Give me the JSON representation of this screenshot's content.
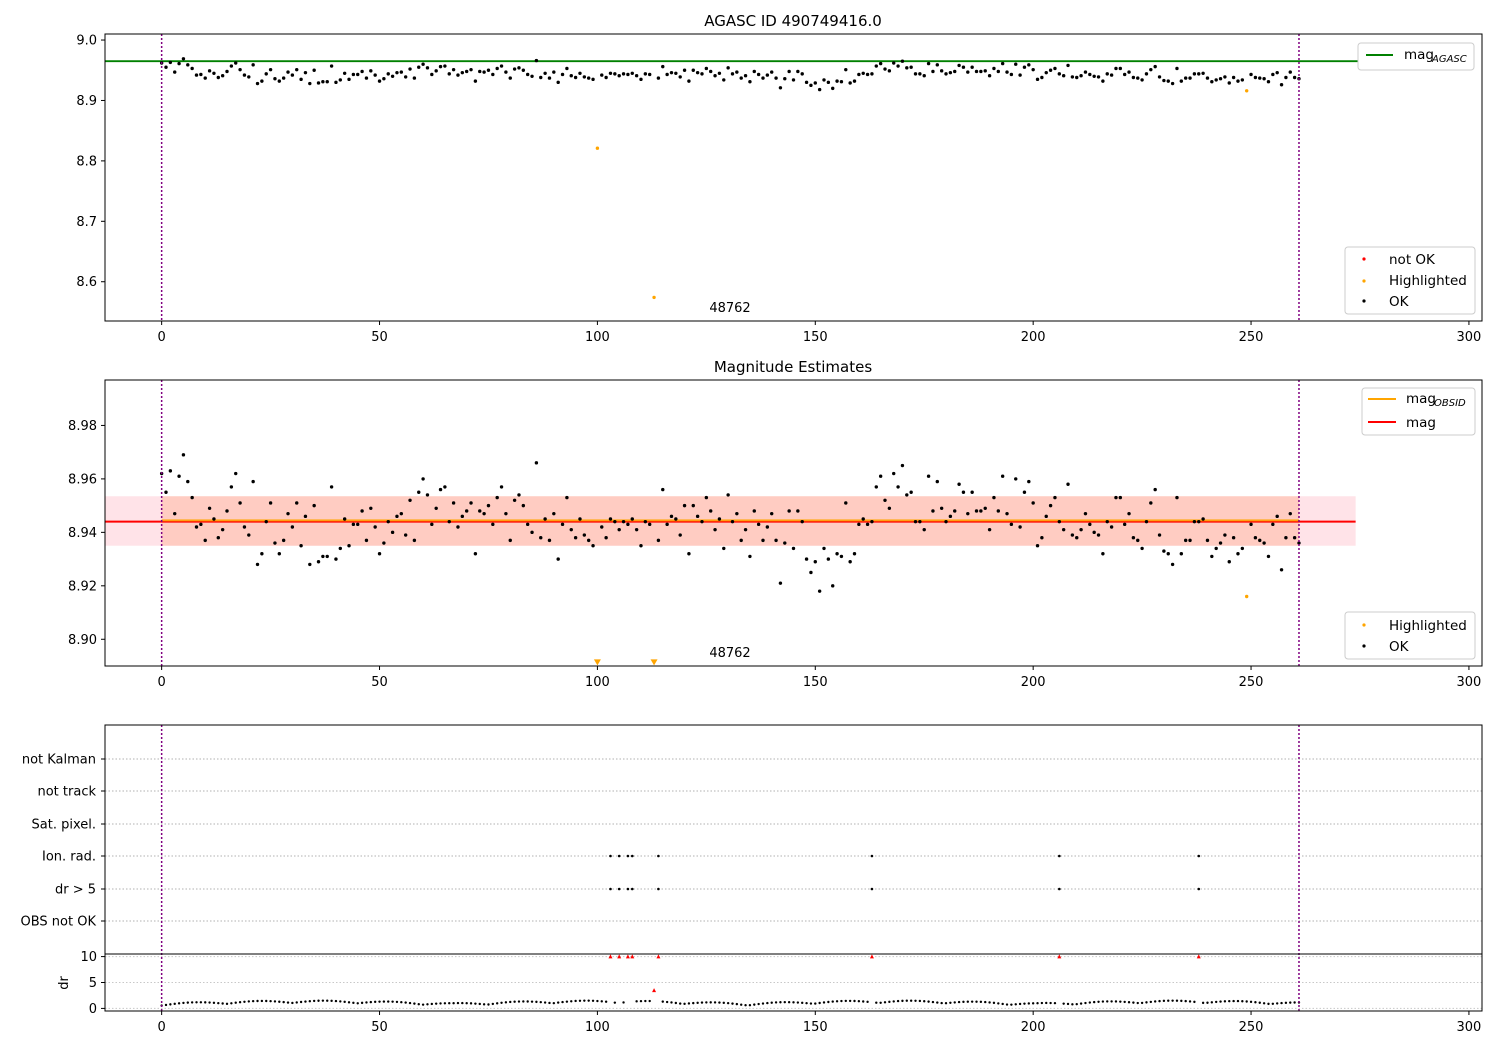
{
  "chart_data": [
    {
      "type": "scatter",
      "title": "AGASC ID 490749416.0",
      "xlim": [
        -13,
        303
      ],
      "ylim": [
        8.535,
        9.01
      ],
      "xticks": [
        0,
        50,
        100,
        150,
        200,
        250,
        300
      ],
      "yticks": [
        8.6,
        8.7,
        8.8,
        8.9,
        9.0
      ],
      "ytick_labels": [
        "8.6",
        "8.7",
        "8.8",
        "8.9",
        "9.0"
      ],
      "grid": false,
      "vlines": [
        0,
        261
      ],
      "hlines": [
        {
          "y": 8.965,
          "color": "#008000",
          "name": "mag_AGASC"
        }
      ],
      "legend_upper": {
        "position": "upper right",
        "entries": [
          {
            "label": "mag",
            "sub": "AGASC",
            "color": "#008000",
            "style": "line"
          }
        ]
      },
      "legend_lower": {
        "position": "lower right",
        "entries": [
          {
            "label": "not OK",
            "color": "#ff0000",
            "style": "dot"
          },
          {
            "label": "Highlighted",
            "color": "#ffa500",
            "style": "dot"
          },
          {
            "label": "OK",
            "color": "#000000",
            "style": "dot"
          }
        ]
      },
      "annotations": [
        {
          "text": "48762",
          "x": 125,
          "y": 8.55
        }
      ],
      "highlighted": [
        {
          "x": 100,
          "y": 8.821
        },
        {
          "x": 113,
          "y": 8.574
        },
        {
          "x": 249,
          "y": 8.916
        }
      ],
      "ok": [
        [
          0,
          8.962
        ],
        [
          1,
          8.955
        ],
        [
          2,
          8.963
        ],
        [
          3,
          8.947
        ],
        [
          4,
          8.961
        ],
        [
          5,
          8.969
        ],
        [
          6,
          8.959
        ],
        [
          7,
          8.953
        ],
        [
          8,
          8.942
        ],
        [
          9,
          8.943
        ],
        [
          10,
          8.937
        ],
        [
          11,
          8.949
        ],
        [
          12,
          8.945
        ],
        [
          13,
          8.938
        ],
        [
          14,
          8.941
        ],
        [
          15,
          8.948
        ],
        [
          16,
          8.957
        ],
        [
          17,
          8.962
        ],
        [
          18,
          8.951
        ],
        [
          19,
          8.942
        ],
        [
          20,
          8.939
        ],
        [
          21,
          8.959
        ],
        [
          22,
          8.928
        ],
        [
          23,
          8.932
        ],
        [
          24,
          8.944
        ],
        [
          25,
          8.951
        ],
        [
          26,
          8.936
        ],
        [
          27,
          8.932
        ],
        [
          28,
          8.937
        ],
        [
          29,
          8.947
        ],
        [
          30,
          8.942
        ],
        [
          31,
          8.951
        ],
        [
          32,
          8.935
        ],
        [
          33,
          8.946
        ],
        [
          34,
          8.928
        ],
        [
          35,
          8.95
        ],
        [
          36,
          8.929
        ],
        [
          37,
          8.931
        ],
        [
          38,
          8.931
        ],
        [
          39,
          8.957
        ],
        [
          40,
          8.93
        ],
        [
          41,
          8.934
        ],
        [
          42,
          8.945
        ],
        [
          43,
          8.935
        ],
        [
          44,
          8.943
        ],
        [
          45,
          8.943
        ],
        [
          46,
          8.948
        ],
        [
          47,
          8.937
        ],
        [
          48,
          8.949
        ],
        [
          49,
          8.942
        ],
        [
          50,
          8.932
        ],
        [
          51,
          8.936
        ],
        [
          52,
          8.944
        ],
        [
          53,
          8.94
        ],
        [
          54,
          8.946
        ],
        [
          55,
          8.947
        ],
        [
          56,
          8.939
        ],
        [
          57,
          8.952
        ],
        [
          58,
          8.937
        ],
        [
          59,
          8.955
        ],
        [
          60,
          8.96
        ],
        [
          61,
          8.954
        ],
        [
          62,
          8.943
        ],
        [
          63,
          8.949
        ],
        [
          64,
          8.956
        ],
        [
          65,
          8.957
        ],
        [
          66,
          8.944
        ],
        [
          67,
          8.951
        ],
        [
          68,
          8.942
        ],
        [
          69,
          8.946
        ],
        [
          70,
          8.948
        ],
        [
          71,
          8.951
        ],
        [
          72,
          8.932
        ],
        [
          73,
          8.948
        ],
        [
          74,
          8.947
        ],
        [
          75,
          8.95
        ],
        [
          76,
          8.943
        ],
        [
          77,
          8.953
        ],
        [
          78,
          8.957
        ],
        [
          79,
          8.947
        ],
        [
          80,
          8.937
        ],
        [
          81,
          8.952
        ],
        [
          82,
          8.954
        ],
        [
          83,
          8.95
        ],
        [
          84,
          8.943
        ],
        [
          85,
          8.94
        ],
        [
          86,
          8.966
        ],
        [
          87,
          8.938
        ],
        [
          88,
          8.945
        ],
        [
          89,
          8.937
        ],
        [
          90,
          8.947
        ],
        [
          91,
          8.93
        ],
        [
          92,
          8.943
        ],
        [
          93,
          8.953
        ],
        [
          94,
          8.941
        ],
        [
          95,
          8.938
        ],
        [
          96,
          8.945
        ],
        [
          97,
          8.939
        ],
        [
          98,
          8.937
        ],
        [
          99,
          8.935
        ],
        [
          101,
          8.942
        ],
        [
          102,
          8.938
        ],
        [
          103,
          8.945
        ],
        [
          104,
          8.944
        ],
        [
          105,
          8.941
        ],
        [
          106,
          8.944
        ],
        [
          107,
          8.943
        ],
        [
          108,
          8.945
        ],
        [
          109,
          8.941
        ],
        [
          110,
          8.935
        ],
        [
          111,
          8.944
        ],
        [
          112,
          8.943
        ],
        [
          114,
          8.937
        ],
        [
          115,
          8.956
        ],
        [
          116,
          8.943
        ],
        [
          117,
          8.946
        ],
        [
          118,
          8.945
        ],
        [
          119,
          8.939
        ],
        [
          120,
          8.95
        ],
        [
          121,
          8.932
        ],
        [
          122,
          8.95
        ],
        [
          123,
          8.946
        ],
        [
          124,
          8.944
        ],
        [
          125,
          8.953
        ],
        [
          126,
          8.948
        ],
        [
          127,
          8.941
        ],
        [
          128,
          8.945
        ],
        [
          129,
          8.934
        ],
        [
          130,
          8.954
        ],
        [
          131,
          8.944
        ],
        [
          132,
          8.947
        ],
        [
          133,
          8.937
        ],
        [
          134,
          8.941
        ],
        [
          135,
          8.931
        ],
        [
          136,
          8.948
        ],
        [
          137,
          8.943
        ],
        [
          138,
          8.937
        ],
        [
          139,
          8.942
        ],
        [
          140,
          8.947
        ],
        [
          141,
          8.937
        ],
        [
          142,
          8.921
        ],
        [
          143,
          8.936
        ],
        [
          144,
          8.948
        ],
        [
          145,
          8.934
        ],
        [
          146,
          8.948
        ],
        [
          147,
          8.944
        ],
        [
          148,
          8.93
        ],
        [
          149,
          8.925
        ],
        [
          150,
          8.929
        ],
        [
          151,
          8.918
        ],
        [
          152,
          8.934
        ],
        [
          153,
          8.93
        ],
        [
          154,
          8.92
        ],
        [
          155,
          8.932
        ],
        [
          156,
          8.931
        ],
        [
          157,
          8.951
        ],
        [
          158,
          8.929
        ],
        [
          159,
          8.932
        ],
        [
          160,
          8.943
        ],
        [
          161,
          8.945
        ],
        [
          162,
          8.943
        ],
        [
          163,
          8.944
        ],
        [
          164,
          8.957
        ],
        [
          165,
          8.961
        ],
        [
          166,
          8.952
        ],
        [
          167,
          8.949
        ],
        [
          168,
          8.962
        ],
        [
          169,
          8.957
        ],
        [
          170,
          8.965
        ],
        [
          171,
          8.954
        ],
        [
          172,
          8.955
        ],
        [
          173,
          8.944
        ],
        [
          174,
          8.944
        ],
        [
          175,
          8.941
        ],
        [
          176,
          8.961
        ],
        [
          177,
          8.948
        ],
        [
          178,
          8.959
        ],
        [
          179,
          8.949
        ],
        [
          180,
          8.944
        ],
        [
          181,
          8.946
        ],
        [
          182,
          8.948
        ],
        [
          183,
          8.958
        ],
        [
          184,
          8.955
        ],
        [
          185,
          8.947
        ],
        [
          186,
          8.955
        ],
        [
          187,
          8.948
        ],
        [
          188,
          8.948
        ],
        [
          189,
          8.949
        ],
        [
          190,
          8.941
        ],
        [
          191,
          8.953
        ],
        [
          192,
          8.948
        ],
        [
          193,
          8.961
        ],
        [
          194,
          8.947
        ],
        [
          195,
          8.943
        ],
        [
          196,
          8.96
        ],
        [
          197,
          8.942
        ],
        [
          198,
          8.955
        ],
        [
          199,
          8.959
        ],
        [
          200,
          8.951
        ],
        [
          201,
          8.935
        ],
        [
          202,
          8.938
        ],
        [
          203,
          8.946
        ],
        [
          204,
          8.95
        ],
        [
          205,
          8.953
        ],
        [
          206,
          8.944
        ],
        [
          207,
          8.941
        ],
        [
          208,
          8.958
        ],
        [
          209,
          8.939
        ],
        [
          210,
          8.938
        ],
        [
          211,
          8.941
        ],
        [
          212,
          8.947
        ],
        [
          213,
          8.943
        ],
        [
          214,
          8.94
        ],
        [
          215,
          8.939
        ],
        [
          216,
          8.932
        ],
        [
          217,
          8.944
        ],
        [
          218,
          8.942
        ],
        [
          219,
          8.953
        ],
        [
          220,
          8.953
        ],
        [
          221,
          8.943
        ],
        [
          222,
          8.947
        ],
        [
          223,
          8.938
        ],
        [
          224,
          8.937
        ],
        [
          225,
          8.934
        ],
        [
          226,
          8.944
        ],
        [
          227,
          8.951
        ],
        [
          228,
          8.956
        ],
        [
          229,
          8.939
        ],
        [
          230,
          8.933
        ],
        [
          231,
          8.932
        ],
        [
          232,
          8.928
        ],
        [
          233,
          8.953
        ],
        [
          234,
          8.932
        ],
        [
          235,
          8.937
        ],
        [
          236,
          8.937
        ],
        [
          237,
          8.944
        ],
        [
          238,
          8.944
        ],
        [
          239,
          8.945
        ],
        [
          240,
          8.937
        ],
        [
          241,
          8.931
        ],
        [
          242,
          8.934
        ],
        [
          243,
          8.936
        ],
        [
          244,
          8.939
        ],
        [
          245,
          8.929
        ],
        [
          246,
          8.938
        ],
        [
          247,
          8.932
        ],
        [
          248,
          8.934
        ],
        [
          250,
          8.943
        ],
        [
          251,
          8.938
        ],
        [
          252,
          8.937
        ],
        [
          253,
          8.936
        ],
        [
          254,
          8.931
        ],
        [
          255,
          8.943
        ],
        [
          256,
          8.946
        ],
        [
          257,
          8.926
        ],
        [
          258,
          8.938
        ],
        [
          259,
          8.947
        ],
        [
          260,
          8.938
        ],
        [
          261,
          8.936
        ]
      ]
    },
    {
      "type": "scatter",
      "title": "Magnitude Estimates",
      "xlim": [
        -13,
        303
      ],
      "ylim": [
        8.89,
        8.997
      ],
      "xticks": [
        0,
        50,
        100,
        150,
        200,
        250,
        300
      ],
      "yticks": [
        8.9,
        8.92,
        8.94,
        8.96,
        8.98
      ],
      "ytick_labels": [
        "8.90",
        "8.92",
        "8.94",
        "8.96",
        "8.98"
      ],
      "grid": false,
      "vlines": [
        0,
        261
      ],
      "band_mag": {
        "x": [
          -13,
          274
        ],
        "y": [
          8.935,
          8.9535
        ],
        "color": "#ffc0cb"
      },
      "band_obsid": {
        "x": [
          0,
          261
        ],
        "y": [
          8.935,
          8.9535
        ],
        "color": "#ffa07a"
      },
      "line_mag": {
        "x": [
          -13,
          274
        ],
        "y": 8.944,
        "color": "#ff0000"
      },
      "line_obsid": {
        "x": [
          0,
          261
        ],
        "y": 8.9445,
        "color": "#ffa500"
      },
      "legend_upper": {
        "position": "upper right",
        "entries": [
          {
            "label": "mag",
            "sub": "OBSID",
            "color": "#ffa500",
            "style": "line"
          },
          {
            "label": "mag",
            "sub": "",
            "color": "#ff0000",
            "style": "line"
          }
        ]
      },
      "legend_lower": {
        "position": "lower right",
        "entries": [
          {
            "label": "Highlighted",
            "color": "#ffa500",
            "style": "dot"
          },
          {
            "label": "OK",
            "color": "#000000",
            "style": "dot"
          }
        ]
      },
      "annotations": [
        {
          "text": "48762",
          "x": 125,
          "y": 8.8935
        }
      ],
      "highlighted": [
        {
          "x": 249,
          "y": 8.916
        }
      ],
      "offscale_markers": [
        {
          "x": 100,
          "y": 8.891
        },
        {
          "x": 113,
          "y": 8.891
        }
      ]
    },
    {
      "type": "scatter",
      "title": "",
      "xlim": [
        -13,
        303
      ],
      "xticks": [
        0,
        50,
        100,
        150,
        200,
        250,
        300
      ],
      "vlines": [
        0,
        261
      ],
      "flag_rows": [
        "not Kalman",
        "not track",
        "Sat. pixel.",
        "Ion. rad.",
        "dr > 5",
        "OBS not OK"
      ],
      "flag_points": {
        "Ion. rad.": [
          103,
          105,
          107,
          108,
          114,
          163,
          206,
          238
        ],
        "dr > 5": [
          103,
          105,
          107,
          108,
          114,
          163,
          206,
          238
        ]
      },
      "dr": {
        "ylabel": "dr",
        "ylim": [
          -0.5,
          10.5
        ],
        "yticks": [
          0,
          5,
          10
        ],
        "ytick_labels": [
          "0",
          "5",
          "10"
        ],
        "not_ok": [
          {
            "x": 103,
            "y": 10
          },
          {
            "x": 105,
            "y": 10
          },
          {
            "x": 107,
            "y": 10
          },
          {
            "x": 108,
            "y": 10
          },
          {
            "x": 113,
            "y": 3.5
          },
          {
            "x": 114,
            "y": 10
          },
          {
            "x": 163,
            "y": 10
          },
          {
            "x": 206,
            "y": 10
          },
          {
            "x": 238,
            "y": 10
          }
        ],
        "ok_range": [
          0,
          261
        ],
        "ok_exclude": [
          103,
          105,
          107,
          108,
          113,
          114,
          163,
          206,
          238
        ]
      }
    }
  ]
}
